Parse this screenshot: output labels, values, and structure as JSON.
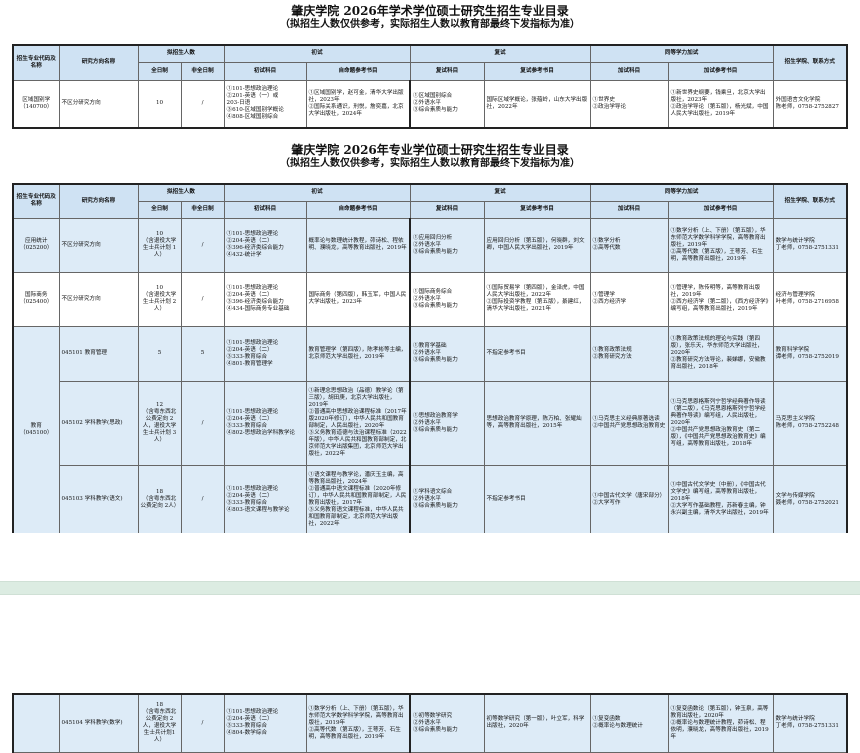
{
  "academic": {
    "title": "肇庆学院 2026年学术学位硕士研究生招生专业目录",
    "subtitle": "（拟招生人数仅供参考，实际招生人数以教育部最终下发指标为准）"
  },
  "professional": {
    "title": "肇庆学院 2026年专业学位硕士研究生招生专业目录",
    "subtitle": "（拟招生人数仅供参考，实际招生人数以教育部最终下发指标为准）"
  },
  "headers": {
    "code_name": "招生专业代码及名称",
    "direction": "研究方向名称",
    "quota": "拟招生人数",
    "full_time": "全日制",
    "part_time": "非全日制",
    "initial": "初试",
    "initial_subjects": "初试科目",
    "self_books": "自命题参考书目",
    "retest": "复试",
    "retest_subjects": "复试科目",
    "retest_books": "复试参考书目",
    "extra": "同等学力加试",
    "extra_subjects": "加试科目",
    "extra_books": "加试参考书目",
    "college": "招生学院、联系方式"
  },
  "academic_rows": [
    {
      "major": "区域国别学\n（140700）",
      "direction": "不区分研究方向",
      "full_time": "10",
      "part_time": "/",
      "initial_subjects": "①101-思想政治理论\n②201-英语（一）或\n   203-日语\n③610-区域国别学概论\n④808-区域国别综合",
      "self_books": "①区域国别学，赵可金，清华大学出版社，2023年\n②国际关系通识，刑悦，詹奕嘉，北京大学出版社，2024年",
      "retest_subjects": "①区域国别综合\n②外语水平\n③综合素质与能力",
      "retest_books": "国际区域学概论，张蕴岭，山东大学出版社，2022年",
      "extra_subjects": "①世界史\n②政治学导论",
      "extra_books": "①新世界史纲要，钱乘旦，北京大学出版社，2023年\n②政治学导论（第五版），杨光斌，中国人民大学出版社，2019年",
      "college": "外国语言文化学院\n陈老师，0758-2752827"
    }
  ],
  "professional_rows": [
    {
      "major": "应用统计\n（025200）",
      "direction": "不区分研究方向",
      "full_time": "10\n（含退役大学生士兵计划 1人）",
      "part_time": "/",
      "initial_subjects": "①101-思想政治理论\n②204-英语（二）\n③396-经济类综合能力\n④432-统计学",
      "self_books": "概率论与数理统计教程，茆诗松、程依明、濮晓龙，高等教育出版社，2019年",
      "retest_subjects": "①应用回归分析\n②外语水平\n③综合素质与能力",
      "retest_books": "应用回归分析（第五版），何晓群，刘文卿，中国人民大学出版社，2019年",
      "extra_subjects": "①数学分析\n②高等代数",
      "extra_books": "①数学分析（上、下册）（第五版），华东师范大学数学科学学院，高等教育出版社，2019年\n②高等代数（第五版），王萼芳、石生明，高等教育出版社，2019年",
      "college": "数学与统计学院\n丁老师，0758-2751331"
    },
    {
      "major": "国际商务\n（025400）",
      "direction": "不区分研究方向",
      "full_time": "10\n（含退役大学生士兵计划 2人）",
      "part_time": "/",
      "initial_subjects": "①101-思想政治理论\n②204-英语（二）\n③396-经济类综合能力\n④434-国际商务专业基础",
      "self_books": "国际商务（第四版），韩玉军，中国人民大学出版社，2023年",
      "retest_subjects": "①国际商务综合\n②外语水平\n③综合素质与能力",
      "retest_books": "①国际贸易学（第四版），金泽虎，中国人民大学出版社，2022年\n②国际投资学教程（第五版），綦建红，清华大学出版社，2021年",
      "extra_subjects": "①管理学\n②西方经济学",
      "extra_books": "①管理学，陈传明等，高等教育出版社，2019年\n②西方经济学（第二版），《西方经济学》编写组，高等教育出版社，2019年",
      "college": "经济与管理学院\n叶老师，0758-2716958"
    },
    {
      "major": "教育\n（045100）",
      "direction": "045101  教育管理",
      "full_time": "5",
      "part_time": "5",
      "initial_subjects": "①101-思想政治理论\n②204-英语（二）\n③333-教育综合\n④801-教育管理学",
      "self_books": "教育管理学（第四版），陈孝彬等主编，北京师范大学出版社，2019年",
      "retest_subjects": "①教育学基础\n②外语水平\n③综合素质与能力",
      "retest_books": "不指定参考书目",
      "extra_subjects": "①教育政策法规\n②教育研究方法",
      "extra_books": "①教育政策法规的理论与实践（第四版），张乐天，华东师范大学出版社，2020年\n②教育研究方法导论，裴娣娜，安徽教育出版社，2018年",
      "college": "教育科学学院\n谭老师，0758-2752019"
    },
    {
      "direction": "045102  学科教学(思政)",
      "full_time": "12\n（含粤东西北公费定向 2人，退役大学生士兵计划 3人）",
      "part_time": "/",
      "initial_subjects": "①101-思想政治理论\n②204-英语（二）\n③333-教育综合\n④802-思想政治学科教学论",
      "self_books": "①新理念思想政治（品德）教学论（第三版），胡田庚，北京大学出版社，2019年\n②普通高中思想政治课程标准（2017年版2020年修订），中华人民共和国教育部制定，人民出版社，2020年\n③义务教育道德与法治课程标准（2022年版），中华人民共和国教育部制定，北京师范大学出版集团，北京师范大学出版社，2022年",
      "retest_subjects": "①思想政治教育学\n②外语水平\n③综合素质与能力",
      "retest_books": "思想政治教育学原理，陈万柏、张耀灿等，高等教育出版社，2015年",
      "extra_subjects": "①马克思主义经典原著选读\n②中国共产党思想政治教育史",
      "extra_books": "①马克思恩格斯列宁哲学经典著作导读（第二版），《马克思恩格斯列宁哲学经典著作导读》编写组，人民出版社，2020年\n②中国共产党思想政治教育史（第二版），《中国共产党思想政治教育史》编写组，高等教育出版社，2018年",
      "college": "马克思主义学院\n陈老师，0758-2752248"
    },
    {
      "direction": "045103  学科教学(语文)",
      "full_time": "18\n（含粤东西北公费定向 2人）",
      "part_time": "/",
      "initial_subjects": "①101-思想政治理论\n②204-英语（二）\n③333-教育综合\n④803-语文课程与教学论",
      "self_books": "①语文课程与教学论，潘庆玉主编，高等教育出版社，2024年\n②普通高中语文课程标准（2020年修订），中华人民共和国教育部制定，人民教育出版社，2017年\n③义务教育语文课程标准，中华人民共和国教育部制定，北京师范大学出版社，2022年",
      "retest_subjects": "①学科语文综合\n②外语水平\n③综合素质与能力",
      "retest_books": "不指定参考书目",
      "extra_subjects": "①中国古代文学（唐宋部分）\n②大学写作",
      "extra_books": "①中国古代文学史（中册），《中国古代文学史》编写组，高等教育出版社，2018年\n②大学写作基础教程，苏新春主编，钟永兴副主编，清华大学出版社，2019年",
      "college": "文学与传媒学院\n聂老师，0758-2752021"
    },
    {
      "direction": "045104  学科教学(数学)",
      "full_time": "18\n（含粤东西北公费定向 2人，退役大学生士兵计划1人）",
      "part_time": "/",
      "initial_subjects": "①101-思想政治理论\n②204-英语（二）\n③333-教育综合\n④804-数学综合",
      "self_books": "①数学分析（上、下册）（第五版），华东师范大学数学科学学院，高等教育出版社，2019年\n②高等代数（第五版），王萼芳、石生明，高等教育出版社，2019年",
      "retest_subjects": "①初等数学研究\n②外语水平\n③综合素质与能力",
      "retest_books": "初等数学研究（第一版），叶立军，科学出版社，2020年",
      "extra_subjects": "①复变函数\n②概率论与数理统计",
      "extra_books": "①复变函数论（第五版），钟玉泉，高等教育出版社，2020年\n②概率论与数理统计教程，茆诗松、程依明，濮晓龙，高等教育出版社，2019年",
      "college": "数学与统计学院\n丁老师，0758-2751331"
    }
  ],
  "colors": {
    "header_bg": "#cfe2f3",
    "row_bg": "#ddebf7",
    "page_break_band": "#dcece2"
  }
}
